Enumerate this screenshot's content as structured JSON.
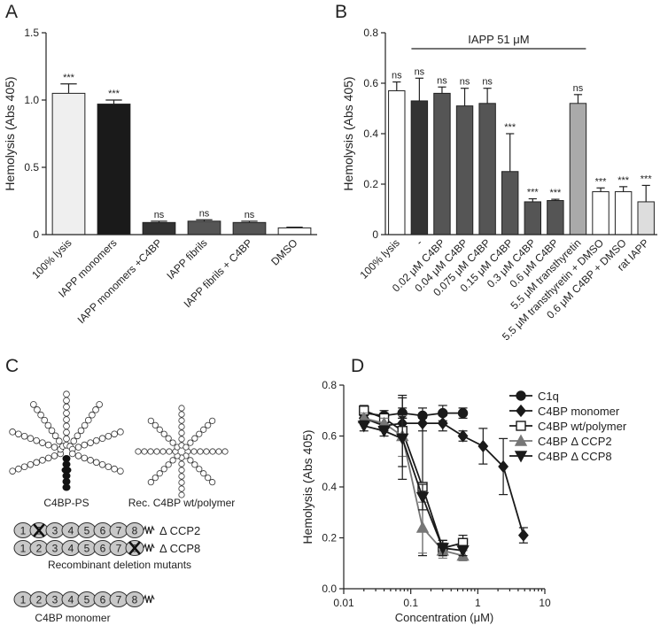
{
  "chart_data": [
    {
      "type": "bar",
      "panel": "A",
      "ylabel": "Hemolysis (Abs 405)",
      "categories": [
        "100% lysis",
        "IAPP monomers",
        "IAPP monomers +C4BP",
        "IAPP fibrils",
        "IAPP fibrils + C4BP",
        "DMSO"
      ],
      "values": [
        1.05,
        0.97,
        0.09,
        0.1,
        0.09,
        0.05
      ],
      "errors": [
        0.07,
        0.03,
        0.01,
        0.01,
        0.01,
        0.005
      ],
      "colors": [
        "#efefef",
        "#1a1a1a",
        "#333333",
        "#555555",
        "#555555",
        "#ffffff"
      ],
      "annotations": [
        "***",
        "***",
        "ns",
        "ns",
        "ns",
        null
      ],
      "ylim": [
        0,
        1.5
      ],
      "yticks": [
        0,
        0.5,
        {
          "value": 1,
          "label": "1.0"
        },
        1.5
      ]
    },
    {
      "type": "bar",
      "panel": "B",
      "ylabel": "Hemolysis (Abs 405)",
      "bracket_label": "IAPP 51 μM",
      "categories": [
        "100% lysis",
        "-",
        "0.02 μM C4BP",
        "0.04 μM C4BP",
        "0.075 μM C4BP",
        "0.15 μM C4BP",
        "0.3 μM C4BP",
        "0.6 μM C4BP",
        "5.5 μM transthyretin",
        "5.5 μM transthyretin + DMSO",
        "0.6 μM C4BP + DMSO",
        "rat IAPP"
      ],
      "values": [
        0.57,
        0.53,
        0.56,
        0.51,
        0.52,
        0.25,
        0.13,
        0.135,
        0.52,
        0.17,
        0.17,
        0.13
      ],
      "errors": [
        0.035,
        0.09,
        0.025,
        0.07,
        0.06,
        0.15,
        0.012,
        0.005,
        0.035,
        0.015,
        0.02,
        0.065
      ],
      "colors": [
        "#ffffff",
        "#333333",
        "#555555",
        "#555555",
        "#555555",
        "#555555",
        "#555555",
        "#555555",
        "#aaaaaa",
        "#ffffff",
        "#ffffff",
        "#dddddd"
      ],
      "annotations": [
        "ns",
        "ns",
        "ns",
        "ns",
        "ns",
        "***",
        "***",
        "***",
        "ns",
        "***",
        "***",
        "***"
      ],
      "ylim": [
        0,
        0.8
      ],
      "yticks": [
        0,
        0.2,
        0.4,
        0.6,
        0.8
      ]
    },
    {
      "type": "line",
      "panel": "D",
      "ylabel": "Hemolysis (Abs 405)",
      "xlabel": "Concentration (μM)",
      "xscale": "log",
      "xlim": [
        0.01,
        10
      ],
      "xticks": [
        0.01,
        0.1,
        1,
        10
      ],
      "ylim": [
        0,
        0.8
      ],
      "yticks": [
        {
          "value": 0,
          "label": "0.0"
        },
        0.2,
        0.4,
        0.6,
        0.8
      ],
      "legend": "upper right",
      "series": [
        {
          "name": "C1q",
          "color": "#1a1a1a",
          "marker": "circle",
          "x": [
            0.02,
            0.04,
            0.075,
            0.15,
            0.3,
            0.6
          ],
          "values": [
            0.69,
            0.68,
            0.69,
            0.68,
            0.69,
            0.69
          ],
          "errors": [
            0.02,
            0.02,
            0.02,
            0.03,
            0.03,
            0.02
          ]
        },
        {
          "name": "C4BP monomer",
          "color": "#1a1a1a",
          "marker": "diamond",
          "x": [
            0.02,
            0.04,
            0.075,
            0.15,
            0.3,
            0.6,
            1.2,
            2.4,
            4.8
          ],
          "values": [
            0.67,
            0.64,
            0.65,
            0.65,
            0.65,
            0.6,
            0.56,
            0.48,
            0.21
          ],
          "errors": [
            0.02,
            0.02,
            0.02,
            0.03,
            0.03,
            0.02,
            0.07,
            0.11,
            0.03
          ]
        },
        {
          "name": "C4BP wt/polymer",
          "color": "#1a1a1a",
          "marker": "square-open",
          "x": [
            0.02,
            0.04,
            0.075,
            0.15,
            0.3,
            0.6
          ],
          "values": [
            0.7,
            0.67,
            0.62,
            0.4,
            0.16,
            0.18
          ],
          "errors": [
            0.02,
            0.02,
            0.14,
            0.27,
            0.03,
            0.03
          ]
        },
        {
          "name": "C4BP Δ CCP2",
          "color": "#777777",
          "marker": "triangle-up",
          "x": [
            0.02,
            0.04,
            0.075,
            0.15,
            0.3,
            0.6
          ],
          "values": [
            0.67,
            0.65,
            0.6,
            0.24,
            0.15,
            0.13
          ],
          "errors": [
            0.02,
            0.02,
            0.08,
            0.1,
            0.03,
            0.02
          ]
        },
        {
          "name": "C4BP Δ CCP8",
          "color": "#1a1a1a",
          "marker": "triangle-down",
          "x": [
            0.02,
            0.04,
            0.075,
            0.15,
            0.3,
            0.6
          ],
          "values": [
            0.64,
            0.62,
            0.59,
            0.36,
            0.16,
            0.15
          ],
          "errors": [
            0.02,
            0.02,
            0.16,
            0.05,
            0.03,
            0.02
          ]
        }
      ]
    }
  ],
  "diagram": {
    "panel": "C",
    "star_labels": [
      "C4BP-PS",
      "Rec. C4BP wt/polymer"
    ],
    "domains": [
      1,
      2,
      3,
      4,
      5,
      6,
      7,
      8
    ],
    "mutants": [
      "Δ CCP2",
      "Δ CCP8"
    ],
    "mutants_label": "Recombinant deletion mutants",
    "monomer_label": "C4BP monomer"
  }
}
